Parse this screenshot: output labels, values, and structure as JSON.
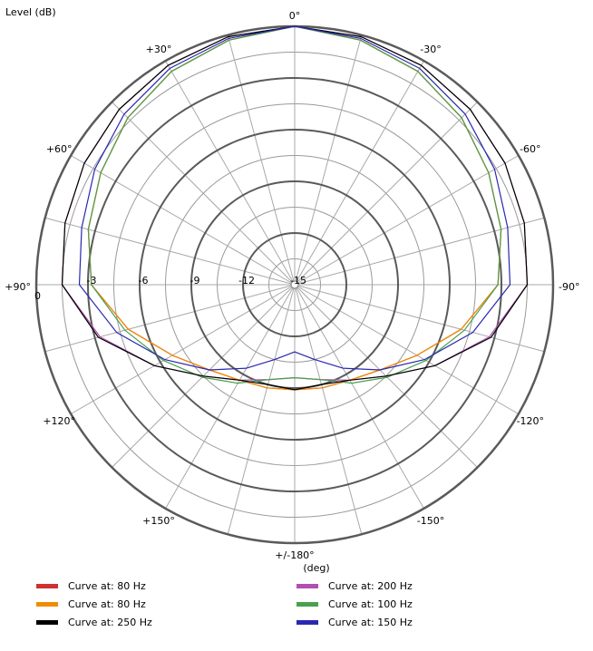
{
  "chart_data": {
    "type": "polar-line",
    "title": "",
    "radial_label": "Level  (dB)",
    "angle_label": "(deg)",
    "radial_range": [
      -15,
      0
    ],
    "radial_ticks": [
      {
        "value": -3,
        "label": "-3"
      },
      {
        "value": -6,
        "label": "-6"
      },
      {
        "value": -9,
        "label": "-9"
      },
      {
        "value": -12,
        "label": "-12"
      },
      {
        "value": -15,
        "label": "-15"
      }
    ],
    "zero_label": "0",
    "angle_tick_labels": [
      {
        "angle": 0,
        "label": "0°"
      },
      {
        "angle": -30,
        "label": "-30°"
      },
      {
        "angle": -60,
        "label": "-60°"
      },
      {
        "angle": -90,
        "label": "-90°"
      },
      {
        "angle": -120,
        "label": "-120°"
      },
      {
        "angle": -150,
        "label": "-150°"
      },
      {
        "angle": 180,
        "label": "+/-180°"
      },
      {
        "angle": 150,
        "label": "+150°"
      },
      {
        "angle": 120,
        "label": "+120°"
      },
      {
        "angle": 90,
        "label": "+90°"
      },
      {
        "angle": 60,
        "label": "+60°"
      },
      {
        "angle": 30,
        "label": "+30°"
      }
    ],
    "grid": true,
    "legend_position": "bottom",
    "angles": [
      0,
      15,
      30,
      45,
      60,
      75,
      90,
      105,
      120,
      135,
      150,
      165,
      180
    ],
    "series": [
      {
        "name": "Curve at: 80 Hz",
        "color": "#d03030",
        "values": [
          0,
          -0.3,
          -0.7,
          -1.3,
          -2.0,
          -2.6,
          -3.2,
          -5.0,
          -6.8,
          -8.0,
          -8.6,
          -8.8,
          -8.9
        ]
      },
      {
        "name": "Curve at: 200 Hz",
        "color": "#b050b0",
        "values": [
          0,
          -0.1,
          -0.3,
          -0.6,
          -0.9,
          -1.2,
          -1.5,
          -3.3,
          -5.6,
          -7.5,
          -8.6,
          -9.3,
          -9.6
        ]
      },
      {
        "name": "Curve at: 80 Hz",
        "color": "#f08c00",
        "values": [
          0,
          -0.3,
          -0.7,
          -1.3,
          -2.0,
          -2.6,
          -3.2,
          -5.0,
          -6.8,
          -8.0,
          -8.6,
          -8.8,
          -8.9
        ]
      },
      {
        "name": "Curve at: 100 Hz",
        "color": "#4aa050",
        "values": [
          0,
          -0.3,
          -0.7,
          -1.3,
          -2.0,
          -2.6,
          -3.2,
          -4.8,
          -6.2,
          -7.4,
          -8.4,
          -9.3,
          -9.6
        ]
      },
      {
        "name": "Curve at: 250 Hz",
        "color": "#000000",
        "values": [
          0,
          -0.1,
          -0.3,
          -0.6,
          -0.9,
          -1.2,
          -1.5,
          -3.2,
          -5.6,
          -7.5,
          -8.6,
          -9.0,
          -8.9
        ]
      },
      {
        "name": "Curve at: 150 Hz",
        "color": "#2828b0",
        "values": [
          0,
          -0.2,
          -0.5,
          -1.0,
          -1.6,
          -2.2,
          -2.5,
          -4.3,
          -6.3,
          -8.0,
          -9.4,
          -10.5,
          -11.1
        ]
      }
    ]
  }
}
